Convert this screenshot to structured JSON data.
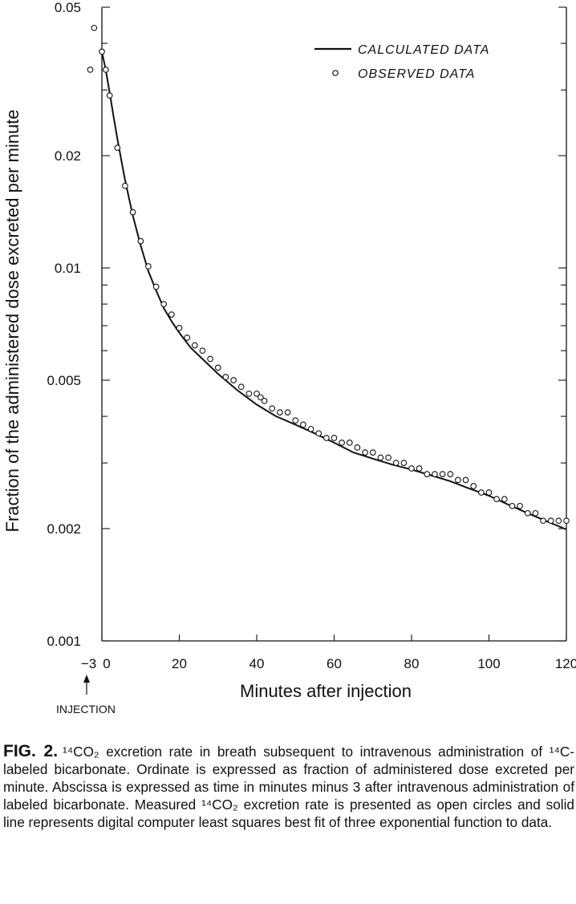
{
  "chart_data": {
    "type": "line",
    "yscale": "log",
    "ylabel": "Fraction of the administered dose excreted per minute",
    "xlabel": "Minutes after injection",
    "xlim": [
      -3,
      120
    ],
    "ylim": [
      0.001,
      0.05
    ],
    "x_ticks": [
      -3,
      0,
      20,
      40,
      60,
      80,
      100,
      120
    ],
    "x_tick_labels": [
      "−3",
      "0",
      "20",
      "40",
      "60",
      "80",
      "100",
      "120"
    ],
    "y_ticks": [
      0.001,
      0.002,
      0.005,
      0.01,
      0.02,
      0.05
    ],
    "y_tick_labels": [
      "0.001",
      "0.002",
      "0.005",
      "0.01",
      "0.02",
      "0.05"
    ],
    "injection_label": "INJECTION",
    "injection_x": -3,
    "legend": [
      {
        "label": "CALCULATED DATA",
        "style": "line"
      },
      {
        "label": "OBSERVED DATA",
        "style": "open-circle"
      }
    ],
    "legend_position": "top-right",
    "series": [
      {
        "name": "CALCULATED DATA",
        "style": "line",
        "x": [
          0,
          1,
          2,
          3,
          4,
          5,
          6,
          8,
          10,
          12,
          14,
          16,
          18,
          20,
          23,
          26,
          30,
          35,
          40,
          45,
          50,
          55,
          60,
          65,
          70,
          75,
          80,
          85,
          90,
          95,
          100,
          105,
          110,
          115,
          120
        ],
        "y": [
          0.038,
          0.034,
          0.0295,
          0.0255,
          0.0222,
          0.0195,
          0.0172,
          0.0138,
          0.0115,
          0.0098,
          0.0087,
          0.0078,
          0.0072,
          0.0067,
          0.0061,
          0.0057,
          0.0052,
          0.0047,
          0.0043,
          0.004,
          0.0038,
          0.0036,
          0.0034,
          0.0032,
          0.00308,
          0.00297,
          0.00288,
          0.00278,
          0.00268,
          0.00256,
          0.00245,
          0.00232,
          0.0022,
          0.00209,
          0.00199
        ]
      },
      {
        "name": "OBSERVED DATA",
        "style": "open-circle",
        "x": [
          -3,
          -2,
          0,
          1,
          2,
          4,
          6,
          8,
          10,
          12,
          14,
          16,
          18,
          20,
          22,
          24,
          26,
          28,
          30,
          32,
          34,
          36,
          38,
          40,
          41,
          42,
          44,
          46,
          48,
          50,
          52,
          54,
          56,
          58,
          60,
          62,
          64,
          66,
          68,
          70,
          72,
          74,
          76,
          78,
          80,
          82,
          84,
          86,
          88,
          90,
          92,
          94,
          96,
          98,
          100,
          102,
          104,
          106,
          108,
          110,
          112,
          114,
          116,
          118,
          120
        ],
        "y": [
          0.034,
          0.044,
          0.038,
          0.034,
          0.029,
          0.021,
          0.0166,
          0.0141,
          0.0118,
          0.0101,
          0.0089,
          0.008,
          0.0075,
          0.0069,
          0.0065,
          0.0062,
          0.006,
          0.0057,
          0.0054,
          0.0051,
          0.005,
          0.0048,
          0.0046,
          0.0046,
          0.0045,
          0.0044,
          0.0042,
          0.0041,
          0.0041,
          0.0039,
          0.0038,
          0.0037,
          0.0036,
          0.0035,
          0.0035,
          0.0034,
          0.0034,
          0.0033,
          0.0032,
          0.0032,
          0.0031,
          0.0031,
          0.003,
          0.003,
          0.0029,
          0.0029,
          0.0028,
          0.0028,
          0.0028,
          0.0028,
          0.0027,
          0.0027,
          0.0026,
          0.0025,
          0.0025,
          0.0024,
          0.0024,
          0.0023,
          0.0023,
          0.0022,
          0.0022,
          0.0021,
          0.0021,
          0.0021,
          0.0021
        ]
      }
    ]
  },
  "caption": {
    "figure_label": "FIG. 2.",
    "text": "¹⁴CO₂ excretion rate in breath subsequent to intravenous administration of ¹⁴C-labeled bicarbonate. Ordinate is expressed as fraction of administered dose excreted per minute. Abscissa is expressed as time in minutes minus 3 after intravenous administration of labeled bicarbonate. Measured ¹⁴CO₂ excretion rate is presented as open circles and solid line represents digital computer least squares best fit of three exponential function to data."
  }
}
